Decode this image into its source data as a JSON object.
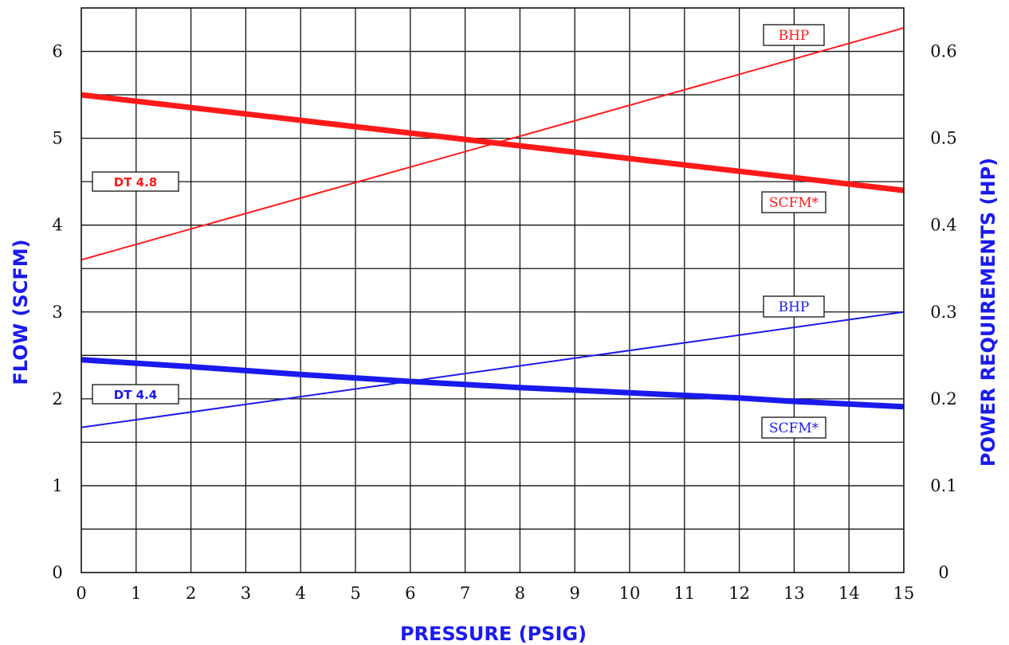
{
  "chart_data": {
    "type": "line",
    "xlabel": "PRESSURE (PSIG)",
    "ylabel": "FLOW  (SCFM)",
    "y2label": "POWER REQUIREMENTS   (HP)",
    "xlim": [
      0,
      15
    ],
    "ylim": [
      0,
      6.5
    ],
    "y2lim": [
      0,
      0.65
    ],
    "x_ticks": [
      "0",
      "1",
      "2",
      "3",
      "4",
      "5",
      "6",
      "7",
      "8",
      "9",
      "10",
      "11",
      "12",
      "13",
      "14",
      "15"
    ],
    "y_ticks": [
      "0",
      "1",
      "2",
      "3",
      "4",
      "5",
      "6"
    ],
    "y2_ticks": [
      "0",
      "0.1",
      "0.2",
      "0.3",
      "0.4",
      "0.5",
      "0.6"
    ],
    "grid": true,
    "series": [
      {
        "name": "SCFM*",
        "model": "DT 4.8",
        "axis": "left",
        "color": "#ff1a1a",
        "weight": "heavy",
        "x": [
          0,
          15
        ],
        "y": [
          5.5,
          4.4
        ]
      },
      {
        "name": "BHP",
        "model": "DT 4.8",
        "axis": "right",
        "color": "#ff1a1a",
        "weight": "thin",
        "x": [
          0,
          15
        ],
        "y": [
          0.36,
          0.627
        ]
      },
      {
        "name": "SCFM*",
        "model": "DT 4.4",
        "axis": "left",
        "color": "#1a1aee",
        "weight": "heavy",
        "x": [
          0,
          2,
          4,
          6,
          8,
          10,
          12,
          13,
          15
        ],
        "y": [
          2.45,
          2.37,
          2.28,
          2.2,
          2.13,
          2.07,
          2.01,
          1.97,
          1.91
        ]
      },
      {
        "name": "BHP",
        "model": "DT 4.4",
        "axis": "right",
        "color": "#1a1aee",
        "weight": "thin",
        "x": [
          0,
          15
        ],
        "y": [
          0.167,
          0.3
        ]
      }
    ],
    "models": [
      {
        "label": "DT 4.8",
        "color": "#ff1a1a"
      },
      {
        "label": "DT 4.4",
        "color": "#1a1aee"
      }
    ]
  }
}
